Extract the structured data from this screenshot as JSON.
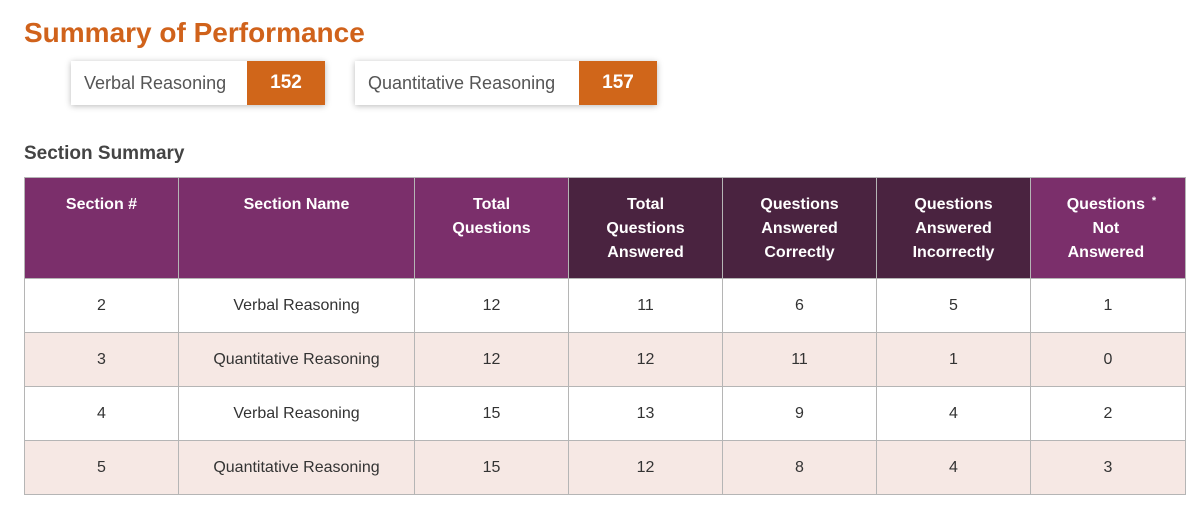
{
  "page": {
    "title": "Summary of Performance"
  },
  "scores": [
    {
      "label": "Verbal Reasoning",
      "value": "152"
    },
    {
      "label": "Quantitative Reasoning",
      "value": "157"
    }
  ],
  "section_summary": {
    "heading": "Section Summary",
    "columns": [
      "Section #",
      "Section Name",
      "Total Questions",
      "Total Questions Answered",
      "Questions Answered Correctly",
      "Questions Answered Incorrectly",
      "Questions Not Answered"
    ],
    "footnote_marker": "*",
    "rows": [
      [
        "2",
        "Verbal Reasoning",
        "12",
        "11",
        "6",
        "5",
        "1"
      ],
      [
        "3",
        "Quantitative Reasoning",
        "12",
        "12",
        "11",
        "1",
        "0"
      ],
      [
        "4",
        "Verbal Reasoning",
        "15",
        "13",
        "9",
        "4",
        "2"
      ],
      [
        "5",
        "Quantitative Reasoning",
        "15",
        "12",
        "8",
        "4",
        "3"
      ]
    ]
  },
  "colors": {
    "accent_orange": "#d0621b",
    "header_purple": "#7b2f6b",
    "header_dark_purple": "#4a2340",
    "row_tint": "#f6e8e4"
  }
}
